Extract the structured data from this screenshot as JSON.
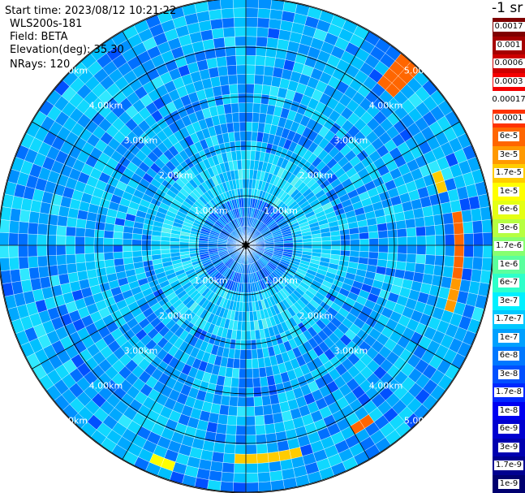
{
  "header": {
    "start_time": "Start time: 2023/08/12 10:21:22",
    "site": "WLS200s-181",
    "field": "Field: BETA",
    "elevation": "Elevation(deg): 35.30",
    "nrays": "NRays: 120"
  },
  "colorbar": {
    "unit_label": "-1 sr",
    "labels": [
      "0.0017",
      "0.001",
      "0.0006",
      "0.0003",
      "0.00017",
      "0.0001",
      "6e-5",
      "3e-5",
      "1.7e-5",
      "1e-5",
      "6e-6",
      "3e-6",
      "1.7e-6",
      "1e-6",
      "6e-7",
      "3e-7",
      "1.7e-7",
      "1e-7",
      "6e-8",
      "3e-8",
      "1.7e-8",
      "1e-8",
      "6e-9",
      "3e-9",
      "1.7e-9",
      "1e-9"
    ],
    "colors": [
      "#7f0000",
      "#a50000",
      "#cd0000",
      "#f50000",
      "#ffffff",
      "#ff3300",
      "#ff6600",
      "#ff9900",
      "#ffcc00",
      "#ffff00",
      "#e4ff14",
      "#b6ff41",
      "#87ff70",
      "#5aff9d",
      "#2dffca",
      "#00f0ff",
      "#00c8ff",
      "#00a0ff",
      "#0078ff",
      "#0050ff",
      "#0028ff",
      "#0000f1",
      "#0000d0",
      "#0000b0",
      "#000090",
      "#000070"
    ]
  },
  "chart_data": {
    "type": "heatmap",
    "projection": "polar (PPI scan)",
    "field": "BETA",
    "n_rays": 120,
    "azimuth_range_deg": [
      0,
      360
    ],
    "range_max_km": 5.0,
    "range_ring_labels": [
      "1.00km",
      "2.00km",
      "3.00km",
      "4.00km",
      "5.00km"
    ],
    "spoke_angles_deg": [
      0,
      30,
      60,
      90,
      120,
      150,
      180,
      210,
      240,
      270,
      300,
      330
    ],
    "colorscale": "log jet",
    "value_range": [
      1e-09,
      0.0017
    ],
    "high_backscatter_features": [
      {
        "azimuth_deg": [
          38,
          46
        ],
        "range_km": [
          4.3,
          4.9
        ],
        "level": "6e-5"
      },
      {
        "azimuth_deg": [
          68,
          74
        ],
        "range_km": [
          4.0,
          4.3
        ],
        "level": "1.7e-5"
      },
      {
        "azimuth_deg": [
          82,
          98
        ],
        "range_km": [
          4.3,
          4.5
        ],
        "level": "6e-5"
      },
      {
        "azimuth_deg": [
          100,
          108
        ],
        "range_km": [
          4.2,
          4.4
        ],
        "level": "3e-5"
      },
      {
        "azimuth_deg": [
          145,
          150
        ],
        "range_km": [
          4.3,
          4.5
        ],
        "level": "6e-5"
      },
      {
        "azimuth_deg": [
          165,
          183
        ],
        "range_km": [
          4.2,
          4.4
        ],
        "level": "1.7e-5"
      },
      {
        "azimuth_deg": [
          198,
          203
        ],
        "range_km": [
          4.6,
          4.8
        ],
        "level": "1e-5"
      }
    ]
  }
}
